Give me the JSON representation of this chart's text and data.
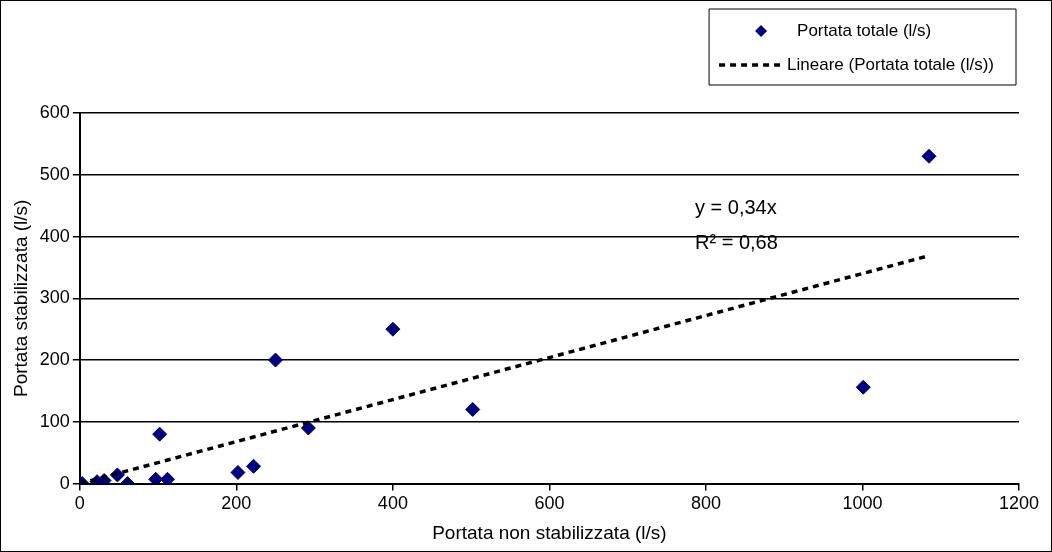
{
  "chart_data": {
    "type": "scatter",
    "xlabel": "Portata non stabilizzata (l/s)",
    "ylabel": "Portata stabilizzata (l/s)",
    "xlim": [
      0,
      1200
    ],
    "xticks": [
      0,
      200,
      400,
      600,
      800,
      1000,
      1200
    ],
    "ylim": [
      0,
      600
    ],
    "yticks": [
      0,
      100,
      200,
      300,
      400,
      500,
      600
    ],
    "grid": "y",
    "legend": "top right",
    "marker": "diamond",
    "annotations": [
      "y = 0,34x",
      "R² = 0,68"
    ],
    "series": [
      {
        "name": "Portata totale (l/s)",
        "color": "#000080",
        "x": [
          0,
          3,
          22,
          31,
          48,
          61,
          97,
          102,
          112,
          202,
          222,
          250,
          292,
          400,
          502,
          1001,
          1085
        ],
        "values": [
          0,
          0,
          3,
          5,
          14,
          0,
          7,
          80,
          7,
          18,
          28,
          200,
          90,
          250,
          120,
          156,
          530
        ]
      },
      {
        "name": "Lineare (Portata totale (l/s))",
        "type": "line",
        "color": "#000000",
        "line_style": "dashed",
        "marker": "none",
        "x": [
          0,
          1085
        ],
        "values": [
          0,
          369
        ]
      }
    ]
  }
}
